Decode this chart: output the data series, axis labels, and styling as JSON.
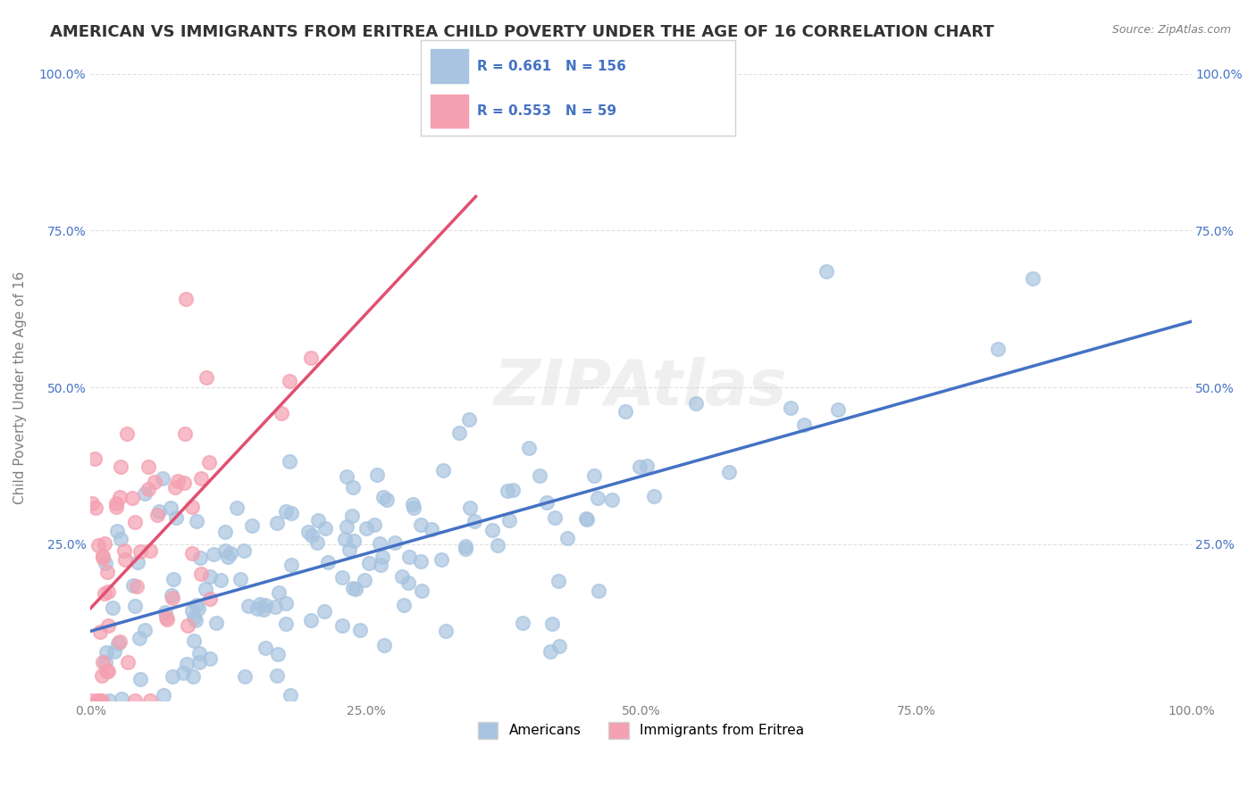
{
  "title": "AMERICAN VS IMMIGRANTS FROM ERITREA CHILD POVERTY UNDER THE AGE OF 16 CORRELATION CHART",
  "source": "Source: ZipAtlas.com",
  "ylabel": "Child Poverty Under the Age of 16",
  "xlabel": "",
  "xlim": [
    0.0,
    1.0
  ],
  "ylim": [
    0.0,
    1.0
  ],
  "xtick_labels": [
    "0.0%",
    "25.0%",
    "50.0%",
    "75.0%",
    "100.0%"
  ],
  "xtick_positions": [
    0.0,
    0.25,
    0.5,
    0.75,
    1.0
  ],
  "ytick_labels": [
    "25.0%",
    "50.0%",
    "75.0%",
    "100.0%"
  ],
  "ytick_positions": [
    0.25,
    0.5,
    0.75,
    1.0
  ],
  "american_color": "#a8c4e0",
  "eritrea_color": "#f4a0b0",
  "american_R": 0.661,
  "american_N": 156,
  "eritrea_R": 0.553,
  "eritrea_N": 59,
  "regression_american_color": "#4472c4",
  "regression_eritrea_color": "#e05070",
  "legend_label_american": "Americans",
  "legend_label_eritrea": "Immigrants from Eritrea",
  "watermark": "ZIPAtlas",
  "background_color": "#ffffff",
  "title_fontsize": 13,
  "label_fontsize": 11,
  "tick_fontsize": 10,
  "stat_color": "#4472c4"
}
